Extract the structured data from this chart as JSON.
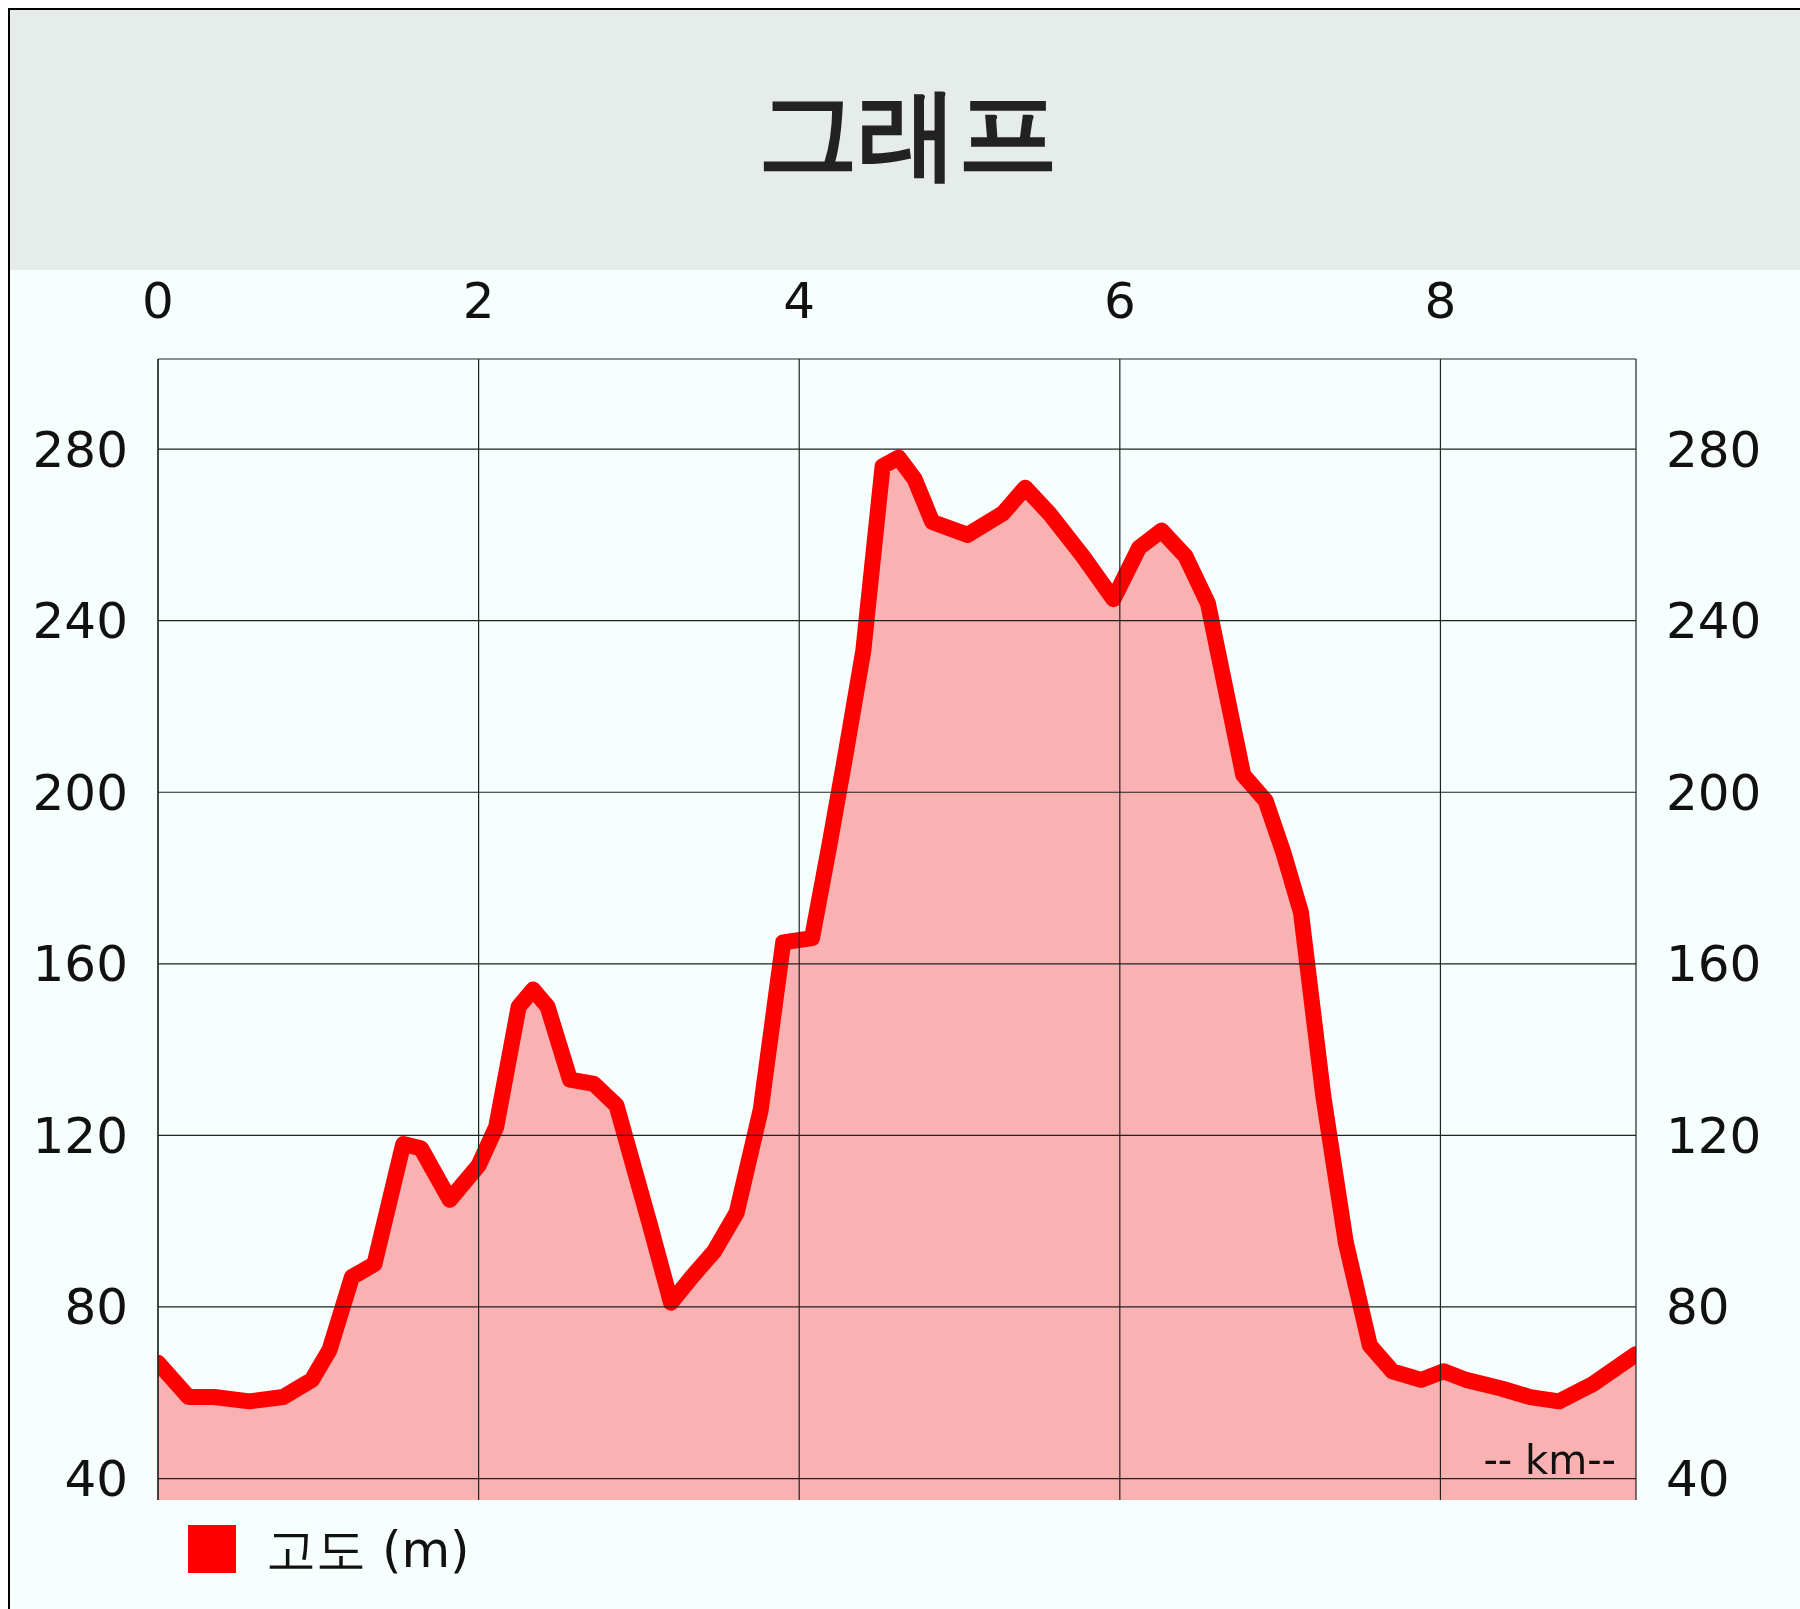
{
  "chart_data": {
    "type": "area",
    "title": "그래프",
    "xlim": [
      0,
      9.22
    ],
    "xticks": [
      0,
      2,
      4,
      6,
      8
    ],
    "ylim": [
      35,
      301
    ],
    "yticks": [
      40,
      80,
      120,
      160,
      200,
      240,
      280
    ],
    "y2lim": [
      35,
      301
    ],
    "y2ticks": [
      40,
      80,
      120,
      160,
      200,
      240,
      280
    ],
    "grid": true,
    "legend": "bottom left",
    "annotations": [
      "-- km--"
    ],
    "series": [
      {
        "name": "고도 (m)",
        "color": "#ff0000",
        "x": [
          0,
          0.19,
          0.35,
          0.57,
          0.78,
          0.96,
          1.07,
          1.21,
          1.35,
          1.53,
          1.64,
          1.82,
          2.0,
          2.11,
          2.25,
          2.34,
          2.43,
          2.57,
          2.72,
          2.86,
          3.07,
          3.2,
          3.33,
          3.47,
          3.61,
          3.76,
          3.9,
          4.08,
          4.19,
          4.29,
          4.4,
          4.52,
          4.62,
          4.72,
          4.83,
          5.05,
          5.27,
          5.41,
          5.56,
          5.77,
          5.96,
          6.12,
          6.26,
          6.41,
          6.55,
          6.77,
          6.91,
          7.02,
          7.13,
          7.27,
          7.41,
          7.56,
          7.7,
          7.88,
          8.02,
          8.16,
          8.38,
          8.56,
          8.74,
          8.95,
          9.22
        ],
        "values": [
          67,
          59,
          59,
          58,
          59,
          63,
          70,
          87,
          90,
          118,
          117,
          105,
          113,
          122,
          150,
          154,
          150,
          133,
          132,
          127,
          99,
          81,
          87,
          93,
          102,
          126,
          165,
          166,
          188,
          209,
          233,
          276,
          278,
          273,
          263,
          260,
          265,
          271,
          265,
          255,
          245,
          257,
          261,
          255,
          244,
          204,
          198,
          186,
          172,
          129,
          95,
          71,
          65,
          63,
          65,
          63,
          61,
          59,
          58,
          62,
          69
        ]
      }
    ]
  }
}
